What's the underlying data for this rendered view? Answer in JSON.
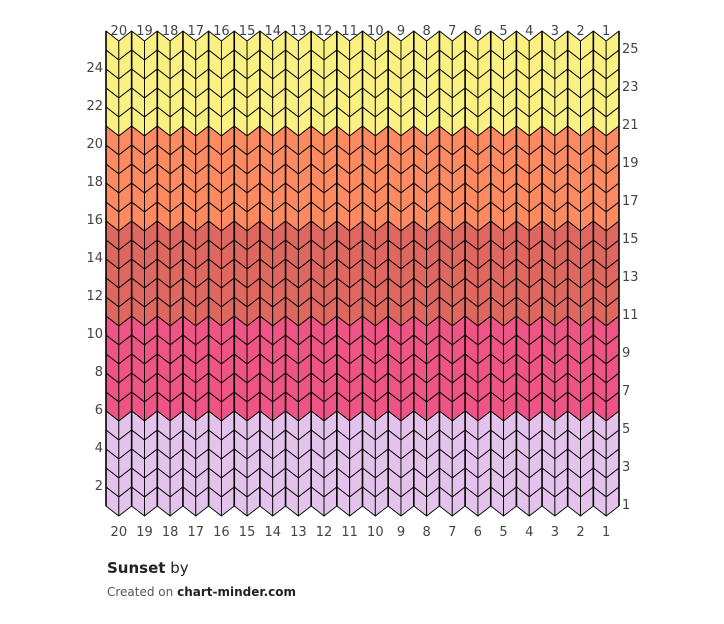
{
  "pattern": {
    "title": "Sunset",
    "by_text": "by",
    "created_on_text": "Created on",
    "site": "chart-minder.com"
  },
  "chart_data": {
    "type": "knitting-chart",
    "columns": 20,
    "rows": 25,
    "stitch": "knit",
    "column_labels": [
      "20",
      "19",
      "18",
      "17",
      "16",
      "15",
      "14",
      "13",
      "12",
      "11",
      "10",
      "9",
      "8",
      "7",
      "6",
      "5",
      "4",
      "3",
      "2",
      "1"
    ],
    "right_row_labels": [
      "1",
      "3",
      "5",
      "7",
      "9",
      "11",
      "13",
      "15",
      "17",
      "19",
      "21",
      "23",
      "25"
    ],
    "left_row_labels": [
      "2",
      "4",
      "6",
      "8",
      "10",
      "12",
      "14",
      "16",
      "18",
      "20",
      "22",
      "24"
    ],
    "color_bands": [
      {
        "rows_from": 1,
        "rows_to": 5,
        "color": "#e3c3ec"
      },
      {
        "rows_from": 6,
        "rows_to": 10,
        "color": "#ee5586"
      },
      {
        "rows_from": 11,
        "rows_to": 15,
        "color": "#de6860"
      },
      {
        "rows_from": 16,
        "rows_to": 20,
        "color": "#fe8a62"
      },
      {
        "rows_from": 21,
        "rows_to": 25,
        "color": "#fbf183"
      }
    ],
    "stitch_outline_color": "#000000"
  }
}
